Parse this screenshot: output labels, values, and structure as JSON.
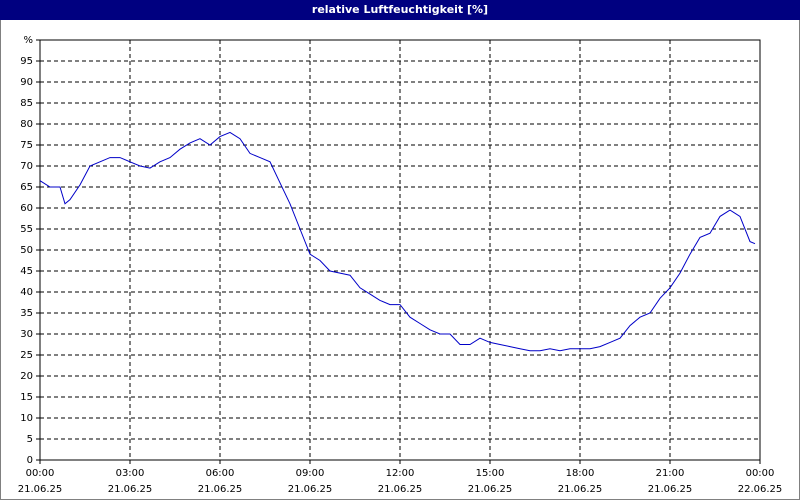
{
  "chart_data": {
    "type": "line",
    "title": "relative Luftfeuchtigkeit [%]",
    "x": [
      "21.06.25 00:00",
      "21.06.25 00:20",
      "21.06.25 00:40",
      "21.06.25 00:50",
      "21.06.25 01:00",
      "21.06.25 01:20",
      "21.06.25 01:40",
      "21.06.25 02:00",
      "21.06.25 02:20",
      "21.06.25 02:40",
      "21.06.25 03:00",
      "21.06.25 03:20",
      "21.06.25 03:40",
      "21.06.25 04:00",
      "21.06.25 04:20",
      "21.06.25 04:40",
      "21.06.25 05:00",
      "21.06.25 05:20",
      "21.06.25 05:40",
      "21.06.25 06:00",
      "21.06.25 06:20",
      "21.06.25 06:40",
      "21.06.25 07:00",
      "21.06.25 07:20",
      "21.06.25 07:40",
      "21.06.25 08:00",
      "21.06.25 08:20",
      "21.06.25 08:40",
      "21.06.25 09:00",
      "21.06.25 09:20",
      "21.06.25 09:40",
      "21.06.25 10:00",
      "21.06.25 10:20",
      "21.06.25 10:40",
      "21.06.25 11:00",
      "21.06.25 11:20",
      "21.06.25 11:40",
      "21.06.25 12:00",
      "21.06.25 12:20",
      "21.06.25 12:40",
      "21.06.25 13:00",
      "21.06.25 13:20",
      "21.06.25 13:40",
      "21.06.25 14:00",
      "21.06.25 14:20",
      "21.06.25 14:40",
      "21.06.25 15:00",
      "21.06.25 15:20",
      "21.06.25 15:40",
      "21.06.25 16:00",
      "21.06.25 16:20",
      "21.06.25 16:40",
      "21.06.25 17:00",
      "21.06.25 17:20",
      "21.06.25 17:40",
      "21.06.25 18:00",
      "21.06.25 18:20",
      "21.06.25 18:40",
      "21.06.25 19:00",
      "21.06.25 19:20",
      "21.06.25 19:40",
      "21.06.25 20:00",
      "21.06.25 20:20",
      "21.06.25 20:40",
      "21.06.25 21:00",
      "21.06.25 21:20",
      "21.06.25 21:40",
      "21.06.25 22:00",
      "21.06.25 22:20",
      "21.06.25 22:40",
      "21.06.25 23:00",
      "21.06.25 23:20",
      "21.06.25 23:40",
      "21.06.25 23:50"
    ],
    "series": [
      {
        "color": "#0000c8",
        "values": [
          66.5,
          65,
          65,
          61,
          62,
          65.5,
          70,
          71,
          72,
          72,
          71,
          70,
          69.5,
          71,
          72,
          74,
          75.5,
          76.5,
          75,
          77,
          78,
          76.5,
          73,
          72,
          71,
          66,
          61,
          55,
          49,
          47.5,
          45,
          44.5,
          44,
          41,
          39.5,
          38,
          37,
          37,
          34,
          32.5,
          31,
          30,
          30,
          27.5,
          27.5,
          29,
          28,
          27.5,
          27,
          26.5,
          26,
          26,
          26.5,
          26,
          26.5,
          26.5,
          26.5,
          27,
          28,
          29,
          32,
          34,
          35,
          38.5,
          41,
          44.5,
          49,
          53,
          54,
          58,
          59.5,
          58,
          52,
          51.5
        ]
      }
    ],
    "xlim": [
      "21.06.25 00:00",
      "22.06.25 00:00"
    ],
    "xticks": [
      {
        "value": "21.06.25 00:00",
        "label": [
          "00:00",
          "21.06.25"
        ]
      },
      {
        "value": "21.06.25 03:00",
        "label": [
          "03:00",
          "21.06.25"
        ]
      },
      {
        "value": "21.06.25 06:00",
        "label": [
          "06:00",
          "21.06.25"
        ]
      },
      {
        "value": "21.06.25 09:00",
        "label": [
          "09:00",
          "21.06.25"
        ]
      },
      {
        "value": "21.06.25 12:00",
        "label": [
          "12:00",
          "21.06.25"
        ]
      },
      {
        "value": "21.06.25 15:00",
        "label": [
          "15:00",
          "21.06.25"
        ]
      },
      {
        "value": "21.06.25 18:00",
        "label": [
          "18:00",
          "21.06.25"
        ]
      },
      {
        "value": "21.06.25 21:00",
        "label": [
          "21:00",
          "21.06.25"
        ]
      },
      {
        "value": "22.06.25 00:00",
        "label": [
          "00:00",
          "22.06.25"
        ]
      }
    ],
    "ylim": [
      0,
      100
    ],
    "yticks": [
      0,
      5,
      10,
      15,
      20,
      25,
      30,
      35,
      40,
      45,
      50,
      55,
      60,
      65,
      70,
      75,
      80,
      85,
      90,
      95,
      {
        "value": 100,
        "label": "%"
      }
    ],
    "grid": true
  }
}
